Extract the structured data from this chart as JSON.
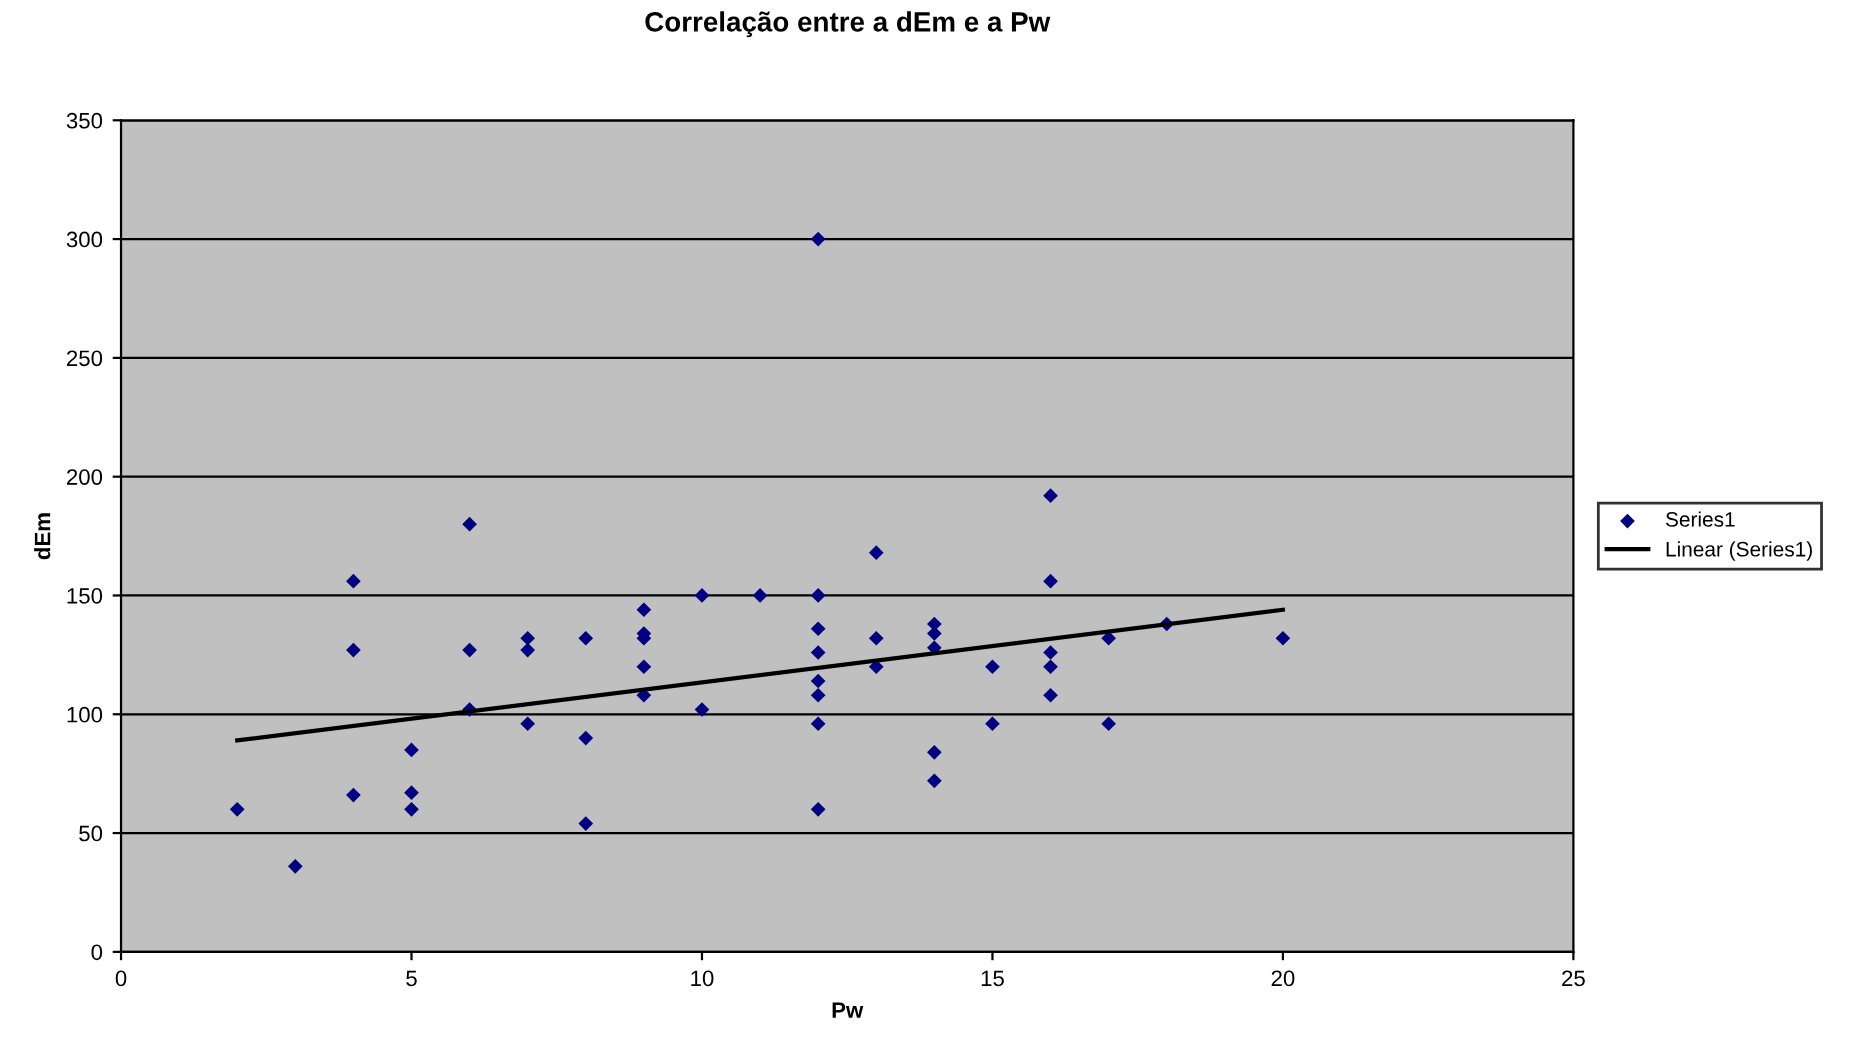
{
  "chart_data": {
    "type": "scatter",
    "title": "Correlação entre a dEm e a Pw",
    "xlabel": "Pw",
    "ylabel": "dEm",
    "xlim": [
      0,
      25
    ],
    "xticks": [
      0,
      5,
      10,
      15,
      20,
      25
    ],
    "ylim": [
      0,
      350
    ],
    "yticks": [
      0,
      50,
      100,
      150,
      200,
      250,
      300,
      350
    ],
    "grid": "y",
    "legend": "right",
    "marker": "diamond",
    "series": [
      {
        "name": "Series1",
        "color": "#000080",
        "x": [
          2,
          3,
          4,
          4,
          4,
          5,
          5,
          5,
          6,
          6,
          6,
          7,
          7,
          7,
          8,
          8,
          8,
          9,
          9,
          9,
          9,
          9,
          10,
          10,
          11,
          12,
          12,
          12,
          12,
          12,
          12,
          12,
          12,
          13,
          13,
          13,
          14,
          14,
          14,
          14,
          14,
          15,
          15,
          16,
          16,
          16,
          16,
          16,
          17,
          17,
          18,
          20
        ],
        "values": [
          60,
          36,
          156,
          127,
          66,
          85,
          67,
          60,
          180,
          127,
          102,
          132,
          127,
          96,
          132,
          90,
          54,
          144,
          134,
          132,
          120,
          108,
          150,
          102,
          150,
          300,
          150,
          136,
          126,
          114,
          108,
          96,
          60,
          168,
          132,
          120,
          138,
          134,
          128,
          84,
          72,
          120,
          96,
          192,
          156,
          126,
          120,
          108,
          132,
          96,
          138,
          132
        ]
      },
      {
        "name": "Linear (Series1)",
        "color": "#000000",
        "type": "line",
        "marker": "none",
        "x": [
          2,
          20
        ],
        "values": [
          89,
          144
        ]
      }
    ]
  }
}
